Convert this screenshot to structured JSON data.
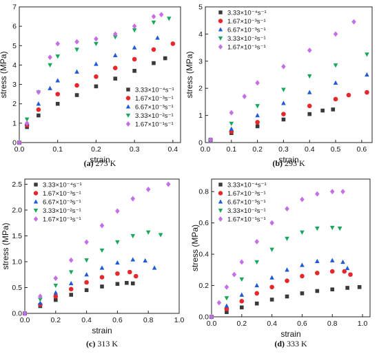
{
  "chart_data": [
    {
      "type": "scatter",
      "title": "(a) 273 K",
      "title_bold": "(a)",
      "title_rest": " 273 K",
      "xlabel": "strain",
      "ylabel": "stress (MPa)",
      "xlim": [
        0,
        0.42
      ],
      "ylim": [
        0,
        7
      ],
      "xticks": [
        0.0,
        0.1,
        0.2,
        0.3,
        0.4
      ],
      "xtick_labels": [
        "0.0",
        "0.1",
        "0.2",
        "0.3",
        "0.4"
      ],
      "yticks": [
        0,
        1,
        2,
        3,
        4,
        5,
        6,
        7
      ],
      "ytick_labels": [
        "0",
        "1",
        "2",
        "3",
        "4",
        "5",
        "6",
        "7"
      ],
      "legend_position": "lower-right",
      "series": [
        {
          "name": "3.33×10⁻⁴s⁻¹",
          "marker": "square",
          "color": "#3a3a3a",
          "x": [
            0,
            0.02,
            0.05,
            0.1,
            0.15,
            0.2,
            0.25,
            0.3,
            0.35,
            0.38
          ],
          "y": [
            0,
            0.8,
            1.4,
            2.0,
            2.45,
            2.9,
            3.3,
            3.7,
            4.1,
            4.35
          ]
        },
        {
          "name": "1.67×10⁻³s⁻¹",
          "marker": "circle",
          "color": "#e8272a",
          "x": [
            0,
            0.02,
            0.05,
            0.1,
            0.15,
            0.2,
            0.25,
            0.3,
            0.35,
            0.4
          ],
          "y": [
            0,
            0.9,
            1.7,
            2.5,
            2.95,
            3.4,
            3.85,
            4.3,
            4.8,
            5.1
          ]
        },
        {
          "name": "6.67×10⁻³s⁻¹",
          "marker": "triangle-up",
          "color": "#1f5bd8",
          "x": [
            0,
            0.02,
            0.05,
            0.08,
            0.1,
            0.15,
            0.2,
            0.25,
            0.3,
            0.36
          ],
          "y": [
            0,
            1.0,
            2.0,
            2.8,
            3.2,
            3.65,
            4.05,
            4.5,
            4.9,
            5.4
          ]
        },
        {
          "name": "3.33×10⁻²s⁻¹",
          "marker": "triangle-down",
          "color": "#18a85a",
          "x": [
            0,
            0.02,
            0.05,
            0.08,
            0.1,
            0.15,
            0.2,
            0.25,
            0.3,
            0.35,
            0.39
          ],
          "y": [
            0,
            1.2,
            2.6,
            4.0,
            4.45,
            4.8,
            5.1,
            5.45,
            5.8,
            6.2,
            6.4
          ]
        },
        {
          "name": "1.67×10⁻¹s⁻¹",
          "marker": "diamond",
          "color": "#c46fe8",
          "x": [
            0,
            0.02,
            0.05,
            0.08,
            0.1,
            0.15,
            0.2,
            0.25,
            0.3,
            0.35,
            0.37
          ],
          "y": [
            0,
            1.0,
            2.6,
            4.4,
            5.1,
            5.2,
            5.35,
            5.6,
            6.0,
            6.5,
            6.6
          ]
        }
      ]
    },
    {
      "type": "scatter",
      "title": "(b) 293 K",
      "title_bold": "(b)",
      "title_rest": " 293 K",
      "xlabel": "strain",
      "ylabel": "stress (MPa)",
      "xlim": [
        0,
        0.64
      ],
      "ylim": [
        0,
        5
      ],
      "xticks": [
        0.0,
        0.1,
        0.2,
        0.3,
        0.4,
        0.5,
        0.6
      ],
      "xtick_labels": [
        "0.0",
        "0.1",
        "0.2",
        "0.3",
        "0.4",
        "0.5",
        "0.6"
      ],
      "yticks": [
        0,
        1,
        2,
        3,
        4,
        5
      ],
      "ytick_labels": [
        "0",
        "1",
        "2",
        "3",
        "4",
        "5"
      ],
      "legend_position": "top-left",
      "series": [
        {
          "name": "3.33×10⁻⁴s⁻¹",
          "marker": "square",
          "color": "#3a3a3a",
          "x": [
            0.02,
            0.1,
            0.2,
            0.3,
            0.4,
            0.45,
            0.49
          ],
          "y": [
            0.1,
            0.35,
            0.6,
            0.85,
            1.05,
            1.18,
            1.22
          ]
        },
        {
          "name": "1.67×10⁻³s⁻¹",
          "marker": "circle",
          "color": "#e8272a",
          "x": [
            0.02,
            0.1,
            0.2,
            0.3,
            0.4,
            0.5,
            0.55,
            0.62
          ],
          "y": [
            0.1,
            0.4,
            0.75,
            1.05,
            1.35,
            1.6,
            1.75,
            1.85
          ]
        },
        {
          "name": "6.67×10⁻³s⁻¹",
          "marker": "triangle-up",
          "color": "#1f5bd8",
          "x": [
            0.02,
            0.1,
            0.2,
            0.3,
            0.4,
            0.5,
            0.62
          ],
          "y": [
            0.1,
            0.5,
            1.0,
            1.45,
            1.85,
            2.2,
            2.5
          ]
        },
        {
          "name": "3.33×10⁻²s⁻¹",
          "marker": "triangle-down",
          "color": "#18a85a",
          "x": [
            0.02,
            0.1,
            0.2,
            0.3,
            0.4,
            0.5,
            0.62
          ],
          "y": [
            0.1,
            0.7,
            1.35,
            1.95,
            2.45,
            2.85,
            3.25
          ]
        },
        {
          "name": "1.67×10⁻¹s⁻¹",
          "marker": "diamond",
          "color": "#c46fe8",
          "x": [
            0.02,
            0.1,
            0.15,
            0.2,
            0.3,
            0.4,
            0.5,
            0.57
          ],
          "y": [
            0.1,
            1.1,
            1.7,
            2.2,
            2.8,
            3.4,
            4.0,
            4.45
          ]
        }
      ]
    },
    {
      "type": "scatter",
      "title": "(c) 313 K",
      "title_bold": "(c)",
      "title_rest": " 313 K",
      "xlabel": "strain",
      "ylabel": "stress (MPa)",
      "xlim": [
        0,
        1.0
      ],
      "ylim": [
        0,
        2.6
      ],
      "xticks": [
        0.0,
        0.2,
        0.4,
        0.6,
        0.8,
        1.0
      ],
      "xtick_labels": [
        "0.0",
        "0.2",
        "0.4",
        "0.6",
        "0.8",
        "1.0"
      ],
      "yticks": [
        0.0,
        0.5,
        1.0,
        1.5,
        2.0,
        2.5
      ],
      "ytick_labels": [
        "0.0",
        "0.5",
        "1.0",
        "1.5",
        "2.0",
        "2.5"
      ],
      "legend_position": "top-left",
      "series": [
        {
          "name": "3.33×10⁻⁴s⁻¹",
          "marker": "square",
          "color": "#3a3a3a",
          "x": [
            0,
            0.1,
            0.2,
            0.3,
            0.4,
            0.5,
            0.6,
            0.66,
            0.7
          ],
          "y": [
            0,
            0.14,
            0.26,
            0.36,
            0.45,
            0.52,
            0.57,
            0.59,
            0.58
          ]
        },
        {
          "name": "1.67×10⁻³s⁻¹",
          "marker": "circle",
          "color": "#e8272a",
          "x": [
            0,
            0.1,
            0.2,
            0.3,
            0.4,
            0.5,
            0.6,
            0.68,
            0.72
          ],
          "y": [
            0,
            0.17,
            0.33,
            0.47,
            0.6,
            0.7,
            0.77,
            0.8,
            0.72
          ]
        },
        {
          "name": "6.67×10⁻³s⁻¹",
          "marker": "triangle-up",
          "color": "#1f5bd8",
          "x": [
            0,
            0.1,
            0.2,
            0.3,
            0.4,
            0.5,
            0.6,
            0.7,
            0.78,
            0.84
          ],
          "y": [
            0,
            0.2,
            0.4,
            0.58,
            0.75,
            0.88,
            0.98,
            1.04,
            1.02,
            0.88
          ]
        },
        {
          "name": "3.33×10⁻²s⁻¹",
          "marker": "triangle-down",
          "color": "#18a85a",
          "x": [
            0,
            0.1,
            0.2,
            0.3,
            0.4,
            0.5,
            0.6,
            0.7,
            0.8,
            0.88
          ],
          "y": [
            0,
            0.27,
            0.54,
            0.8,
            1.03,
            1.22,
            1.38,
            1.5,
            1.57,
            1.52
          ]
        },
        {
          "name": "1.67×10⁻¹s⁻¹",
          "marker": "diamond",
          "color": "#c46fe8",
          "x": [
            0,
            0.1,
            0.2,
            0.3,
            0.4,
            0.5,
            0.6,
            0.7,
            0.8,
            0.93
          ],
          "y": [
            0,
            0.33,
            0.68,
            1.03,
            1.38,
            1.7,
            1.98,
            2.22,
            2.4,
            2.5
          ]
        }
      ]
    },
    {
      "type": "scatter",
      "title": "(d) 333 K",
      "title_bold": "(d)",
      "title_rest": " 333 K",
      "xlabel": "strain",
      "ylabel": "stress (MPa)",
      "xlim": [
        0,
        1.05
      ],
      "ylim": [
        0,
        0.88
      ],
      "xticks": [
        0.0,
        0.2,
        0.4,
        0.6,
        0.8,
        1.0
      ],
      "xtick_labels": [
        "0.0",
        "0.2",
        "0.4",
        "0.6",
        "0.8",
        "1.0"
      ],
      "yticks": [
        0.0,
        0.2,
        0.4,
        0.6,
        0.8
      ],
      "ytick_labels": [
        "0.0",
        "0.2",
        "0.4",
        "0.6",
        "0.8"
      ],
      "legend_position": "top-left",
      "series": [
        {
          "name": "3.33×10⁻⁴s⁻¹",
          "marker": "square",
          "color": "#3a3a3a",
          "x": [
            0,
            0.1,
            0.2,
            0.3,
            0.4,
            0.5,
            0.6,
            0.7,
            0.8,
            0.9,
            0.98
          ],
          "y": [
            0,
            0.03,
            0.06,
            0.085,
            0.11,
            0.13,
            0.15,
            0.165,
            0.175,
            0.185,
            0.19
          ]
        },
        {
          "name": "1.67×10⁻³s⁻¹",
          "marker": "circle",
          "color": "#e8272a",
          "x": [
            0,
            0.1,
            0.2,
            0.3,
            0.4,
            0.5,
            0.6,
            0.7,
            0.8,
            0.88,
            0.92
          ],
          "y": [
            0,
            0.05,
            0.1,
            0.15,
            0.19,
            0.23,
            0.26,
            0.28,
            0.29,
            0.29,
            0.27
          ]
        },
        {
          "name": "6.67×10⁻³s⁻¹",
          "marker": "triangle-up",
          "color": "#1f5bd8",
          "x": [
            0,
            0.1,
            0.2,
            0.3,
            0.4,
            0.5,
            0.6,
            0.7,
            0.8,
            0.87,
            0.9
          ],
          "y": [
            0,
            0.07,
            0.14,
            0.2,
            0.25,
            0.3,
            0.33,
            0.355,
            0.36,
            0.35,
            0.31
          ]
        },
        {
          "name": "3.33×10⁻²s⁻¹",
          "marker": "triangle-down",
          "color": "#18a85a",
          "x": [
            0,
            0.1,
            0.2,
            0.3,
            0.4,
            0.5,
            0.6,
            0.7,
            0.8,
            0.85
          ],
          "y": [
            0,
            0.12,
            0.24,
            0.35,
            0.43,
            0.5,
            0.54,
            0.565,
            0.57,
            0.565
          ]
        },
        {
          "name": "1.67×10⁻¹s⁻¹",
          "marker": "diamond",
          "color": "#c46fe8",
          "x": [
            0,
            0.05,
            0.1,
            0.15,
            0.2,
            0.3,
            0.4,
            0.5,
            0.6,
            0.7,
            0.8,
            0.87
          ],
          "y": [
            0,
            0.09,
            0.19,
            0.27,
            0.35,
            0.48,
            0.6,
            0.69,
            0.75,
            0.785,
            0.8,
            0.8
          ]
        }
      ]
    }
  ]
}
